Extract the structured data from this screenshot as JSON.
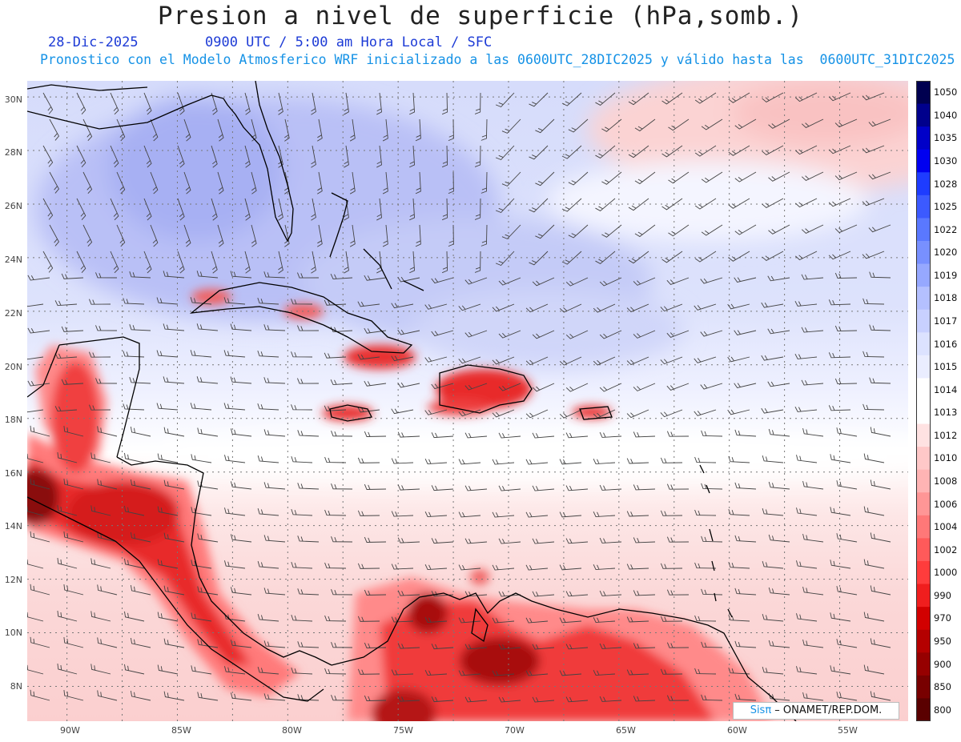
{
  "header": {
    "title": "Presion a nivel de superficie (hPa,somb.)",
    "date": "28-Dic-2025",
    "valid_time": "0900 UTC / 5:00 am Hora Local / SFC",
    "description": "Pronostico con el Modelo Atmosferico WRF inicializado a las 0600UTC_28DIC2025 y válido hasta las  0600UTC_31DIC2025"
  },
  "axes": {
    "lat_labels": [
      "30N",
      "28N",
      "26N",
      "24N",
      "22N",
      "20N",
      "18N",
      "16N",
      "14N",
      "12N",
      "10N",
      "8N"
    ],
    "lon_labels": [
      "90W",
      "85W",
      "80W",
      "75W",
      "70W",
      "65W",
      "60W",
      "55W"
    ],
    "lat_range": [
      6.7,
      30.6
    ],
    "lon_range": [
      -91.8,
      -51.9
    ]
  },
  "colorbar": {
    "unit": "hPa",
    "levels": [
      "1050",
      "1040",
      "1035",
      "1030",
      "1028",
      "1025",
      "1022",
      "1020",
      "1019",
      "1018",
      "1017",
      "1016",
      "1015",
      "1014",
      "1013",
      "1012",
      "1010",
      "1008",
      "1006",
      "1004",
      "1002",
      "1000",
      "990",
      "970",
      "950",
      "900",
      "850",
      "800"
    ],
    "colors": [
      "#000050",
      "#00008c",
      "#0000c8",
      "#0000f0",
      "#1e3cff",
      "#3c5aff",
      "#5a78ff",
      "#7890ff",
      "#96a8ff",
      "#b4c0ff",
      "#c8d0ff",
      "#dce2ff",
      "#eaedff",
      "#ffffff",
      "#ffffff",
      "#ffe2e2",
      "#ffc8c8",
      "#ffb4b4",
      "#ff9696",
      "#ff7878",
      "#ff5a5a",
      "#ff3c3c",
      "#f01e1e",
      "#d20000",
      "#b40000",
      "#960000",
      "#780000",
      "#5a0000"
    ]
  },
  "credit": {
    "logo": "Sisπ",
    "text": " – ONAMET/REP.DOM."
  }
}
